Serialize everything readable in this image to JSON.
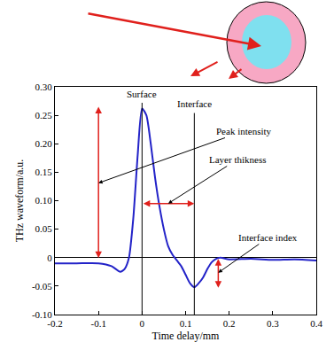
{
  "chart_data": {
    "type": "line",
    "x_label": "Time delay/mm",
    "y_label": "THz waveform/a.u.",
    "x": [
      -0.2,
      -0.15,
      -0.1,
      -0.07,
      -0.05,
      -0.04,
      -0.03,
      -0.02,
      -0.01,
      0,
      0.01,
      0.02,
      0.03,
      0.04,
      0.05,
      0.06,
      0.07,
      0.08,
      0.09,
      0.1,
      0.11,
      0.12,
      0.13,
      0.14,
      0.15,
      0.16,
      0.17,
      0.18,
      0.2,
      0.25,
      0.3,
      0.35,
      0.4
    ],
    "values": [
      -0.01,
      -0.01,
      -0.01,
      -0.015,
      -0.025,
      -0.02,
      0.0,
      0.07,
      0.18,
      0.262,
      0.25,
      0.2,
      0.14,
      0.09,
      0.05,
      0.02,
      0.005,
      -0.005,
      -0.015,
      -0.03,
      -0.045,
      -0.052,
      -0.045,
      -0.035,
      -0.02,
      -0.008,
      -0.002,
      0.0,
      -0.003,
      -0.002,
      -0.004,
      -0.003,
      -0.005
    ],
    "color": "#2323c8",
    "xlim": [
      -0.2,
      0.4
    ],
    "xticks": [
      -0.2,
      -0.1,
      0,
      0.1,
      0.2,
      0.3,
      0.4
    ],
    "ylim": [
      -0.1,
      0.3
    ],
    "yticks": [
      {
        "value": -0.1,
        "label": "-0.10"
      },
      -0.05,
      0,
      0.05,
      {
        "value": 0.1,
        "label": "0.10"
      },
      0.15,
      {
        "value": 0.2,
        "label": "0.20"
      },
      0.25,
      {
        "value": 0.3,
        "label": "0.30"
      }
    ],
    "grid": false,
    "annotations": [
      {
        "text": "Surface",
        "x": 0
      },
      {
        "text": "Interface",
        "x": 0.12
      },
      {
        "text": "Peak intensity",
        "x": -0.1,
        "y": [
          -0.003,
          0.265
        ]
      },
      {
        "text": "Layer thikness",
        "x": [
          0,
          0.12
        ],
        "y": 0.095
      },
      {
        "text": "Interface index",
        "x": 0.175,
        "y": [
          0,
          -0.053
        ]
      }
    ]
  }
}
